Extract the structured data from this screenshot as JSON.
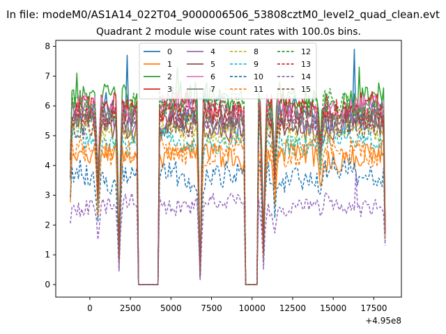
{
  "chart_data": {
    "type": "line",
    "suptitle": "In file: modeM0/AS1A14_022T04_9000006506_53808cztM0_level2_quad_clean.evt",
    "title": "Quadrant 2 module wise count rates with 100.0s bins.",
    "xlabel": "",
    "ylabel": "",
    "x_offset_label": "+4.95e8",
    "xlim": [
      -2100,
      19200
    ],
    "ylim": [
      -0.42,
      8.2
    ],
    "x_ticks": [
      0,
      2500,
      5000,
      7500,
      10000,
      12500,
      15000,
      17500
    ],
    "x_tick_labels": [
      "0",
      "2500",
      "5000",
      "7500",
      "10000",
      "12500",
      "15000",
      "17500"
    ],
    "y_ticks": [
      0,
      1,
      2,
      3,
      4,
      5,
      6,
      7,
      8
    ],
    "y_tick_labels": [
      "0",
      "1",
      "2",
      "3",
      "4",
      "5",
      "6",
      "7",
      "8"
    ],
    "legend_position": "top-center",
    "legend_columns": 4,
    "bin_size_s": 100,
    "segments": [
      {
        "start": -1200,
        "end": 3000
      },
      {
        "start": 3000,
        "end": 4200,
        "gap": true
      },
      {
        "start": 4200,
        "end": 9600
      },
      {
        "start": 9600,
        "end": 10300,
        "gap": true
      },
      {
        "start": 10300,
        "end": 18200
      }
    ],
    "dips": [
      {
        "x": 1800,
        "depth": 0.85
      },
      {
        "x": 6800,
        "depth": 0.95
      },
      {
        "x": 10700,
        "depth": 0.8
      },
      {
        "x": 500,
        "depth": 0.45
      },
      {
        "x": 11400,
        "depth": 0.35
      },
      {
        "x": 14200,
        "depth": 0.25
      }
    ],
    "series": [
      {
        "name": "0",
        "color": "#1f77b4",
        "dash": "solid",
        "mean": 5.7,
        "noise": 0.55,
        "peaks": [
          [
            2300,
            7.7
          ],
          [
            16300,
            7.9
          ]
        ]
      },
      {
        "name": "1",
        "color": "#ff7f0e",
        "dash": "solid",
        "mean": 4.3,
        "noise": 0.4,
        "peaks": []
      },
      {
        "name": "2",
        "color": "#2ca02c",
        "dash": "solid",
        "mean": 6.2,
        "noise": 0.5,
        "peaks": [
          [
            -800,
            7.1
          ],
          [
            5400,
            7.3
          ],
          [
            16600,
            7.3
          ]
        ]
      },
      {
        "name": "3",
        "color": "#d62728",
        "dash": "solid",
        "mean": 5.9,
        "noise": 0.45,
        "peaks": []
      },
      {
        "name": "4",
        "color": "#9467bd",
        "dash": "solid",
        "mean": 5.5,
        "noise": 0.4,
        "peaks": []
      },
      {
        "name": "5",
        "color": "#8c564b",
        "dash": "solid",
        "mean": 5.3,
        "noise": 0.4,
        "peaks": []
      },
      {
        "name": "6",
        "color": "#e377c2",
        "dash": "solid",
        "mean": 5.9,
        "noise": 0.4,
        "peaks": []
      },
      {
        "name": "7",
        "color": "#7f7f7f",
        "dash": "solid",
        "mean": 5.6,
        "noise": 0.4,
        "peaks": []
      },
      {
        "name": "8",
        "color": "#bcbd22",
        "dash": "dashed",
        "mean": 5.1,
        "noise": 0.35,
        "peaks": []
      },
      {
        "name": "9",
        "color": "#17becf",
        "dash": "dashed",
        "mean": 4.8,
        "noise": 0.35,
        "peaks": []
      },
      {
        "name": "10",
        "color": "#1f77b4",
        "dash": "dashed",
        "mean": 3.7,
        "noise": 0.45,
        "peaks": []
      },
      {
        "name": "11",
        "color": "#ff7f0e",
        "dash": "dashed",
        "mean": 4.5,
        "noise": 0.4,
        "peaks": []
      },
      {
        "name": "12",
        "color": "#2ca02c",
        "dash": "dashed",
        "mean": 6.0,
        "noise": 0.4,
        "peaks": []
      },
      {
        "name": "13",
        "color": "#d62728",
        "dash": "dashed",
        "mean": 5.8,
        "noise": 0.4,
        "peaks": []
      },
      {
        "name": "14",
        "color": "#9467bd",
        "dash": "dashed",
        "mean": 2.7,
        "noise": 0.3,
        "peaks": [
          [
            16400,
            3.8
          ]
        ]
      },
      {
        "name": "15",
        "color": "#8c564b",
        "dash": "dashed",
        "mean": 5.4,
        "noise": 0.35,
        "peaks": []
      }
    ]
  }
}
